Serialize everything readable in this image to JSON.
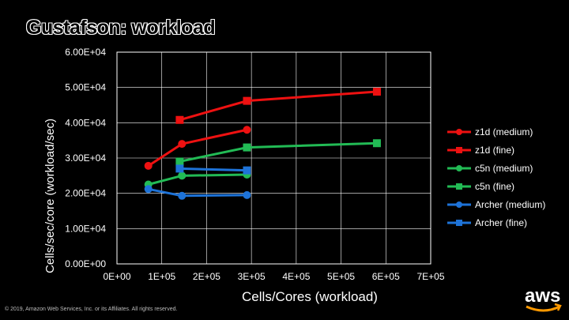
{
  "slide": {
    "title": "Gustafson: workload",
    "footer": "© 2019, Amazon Web Services, Inc. or its Affiliates. All rights reserved.",
    "logo_text": "aws"
  },
  "chart_data": {
    "type": "line",
    "title": "",
    "xlabel": "Cells/Cores (workload)",
    "ylabel": "Cells/sec/core (workload/sec)",
    "xlim": [
      0,
      700000
    ],
    "ylim": [
      0,
      60000
    ],
    "x_ticks": [
      "0E+00",
      "1E+05",
      "2E+05",
      "3E+05",
      "4E+05",
      "5E+05",
      "6E+05",
      "7E+05"
    ],
    "y_ticks": [
      "0.00E+00",
      "1.00E+04",
      "2.00E+04",
      "3.00E+04",
      "4.00E+04",
      "5.00E+04",
      "6.00E+04"
    ],
    "legend_position": "right",
    "series": [
      {
        "name": "z1d (medium)",
        "color": "#ee1111",
        "marker": "circle",
        "points": [
          [
            70000,
            27800
          ],
          [
            145000,
            34000
          ],
          [
            290000,
            38000
          ]
        ]
      },
      {
        "name": "z1d (fine)",
        "color": "#ee1111",
        "marker": "square",
        "points": [
          [
            140000,
            40800
          ],
          [
            290000,
            46200
          ],
          [
            580000,
            48800
          ]
        ]
      },
      {
        "name": "c5n (medium)",
        "color": "#22bb55",
        "marker": "circle",
        "points": [
          [
            70000,
            22500
          ],
          [
            145000,
            25000
          ],
          [
            290000,
            25300
          ]
        ]
      },
      {
        "name": "c5n (fine)",
        "color": "#22bb55",
        "marker": "square",
        "points": [
          [
            140000,
            29000
          ],
          [
            290000,
            33000
          ],
          [
            580000,
            34200
          ]
        ]
      },
      {
        "name": "Archer (medium)",
        "color": "#1e73d8",
        "marker": "circle",
        "points": [
          [
            70000,
            21200
          ],
          [
            145000,
            19300
          ],
          [
            290000,
            19500
          ]
        ]
      },
      {
        "name": "Archer (fine)",
        "color": "#1e73d8",
        "marker": "square",
        "points": [
          [
            140000,
            27000
          ],
          [
            290000,
            26500
          ]
        ]
      }
    ]
  }
}
